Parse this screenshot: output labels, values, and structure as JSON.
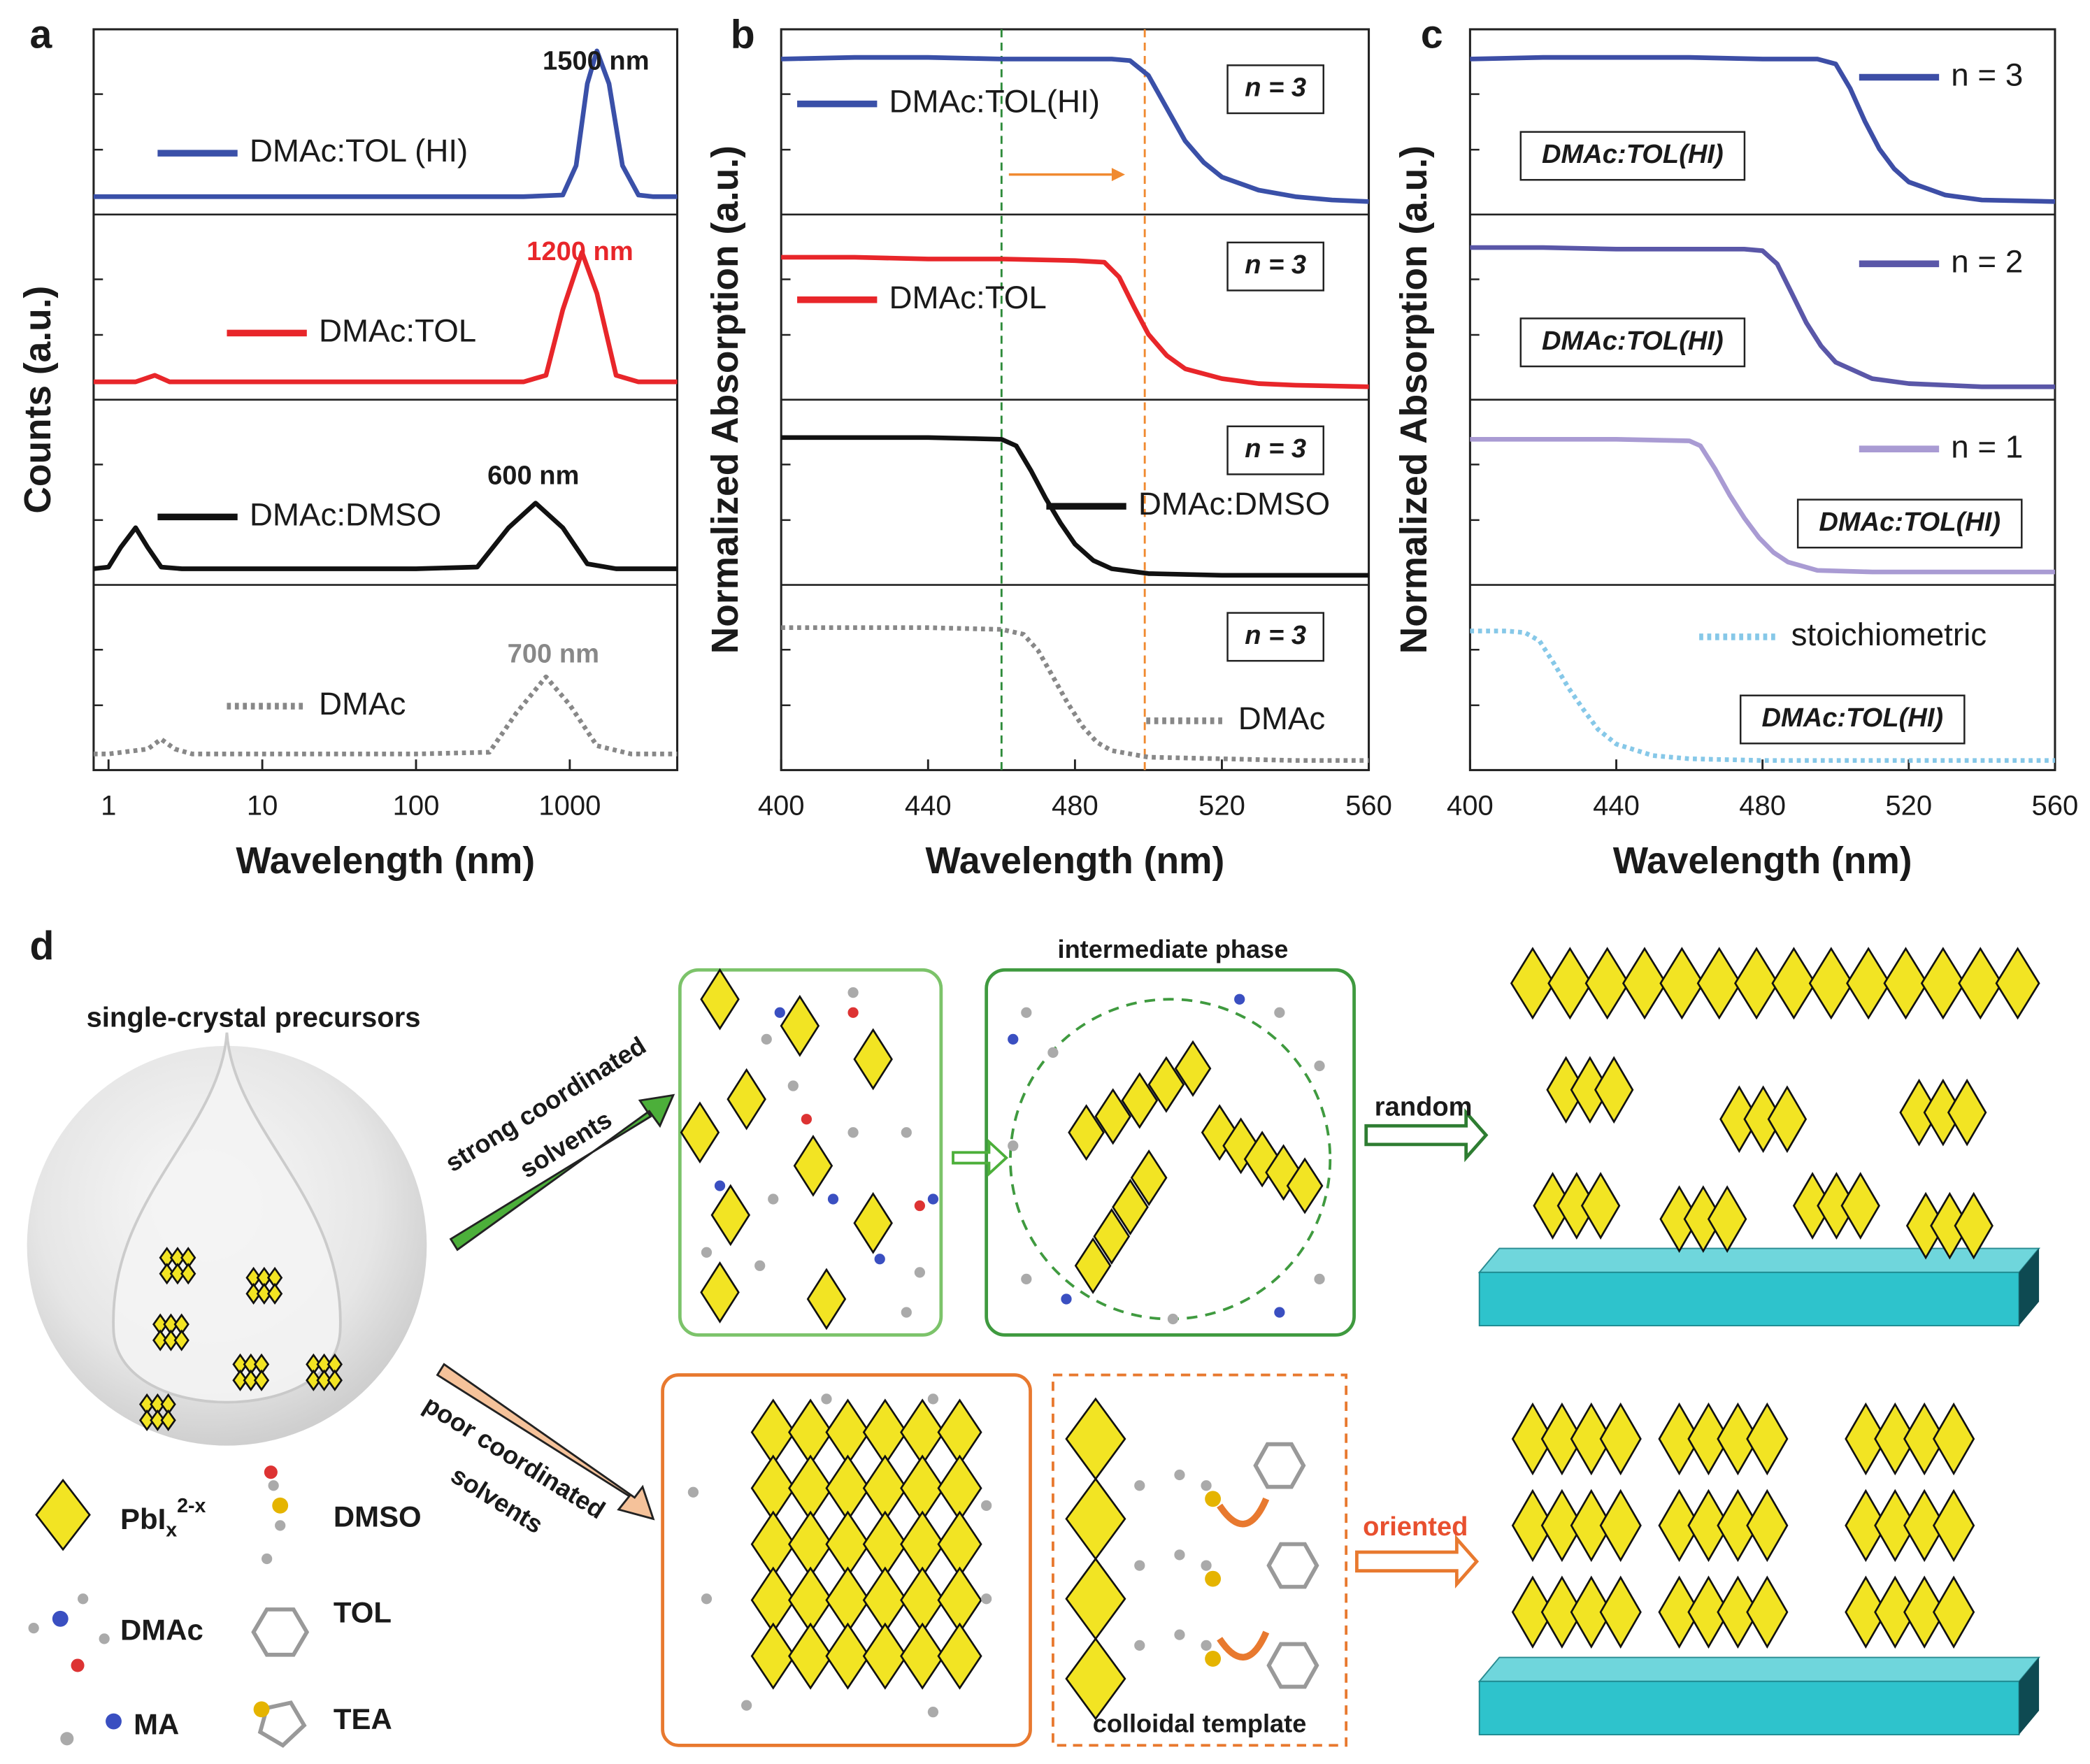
{
  "chart_data": [
    {
      "type": "line",
      "panel": "a",
      "x_label": "Wavelength (nm)",
      "y_label": "Counts (a.u.)",
      "log_x": true,
      "xlim": [
        0.8,
        5000
      ],
      "xticks": [
        1,
        10,
        100,
        1000
      ],
      "ylim": [
        0,
        1
      ],
      "series": [
        {
          "name": "DMAc:TOL (HI)",
          "color": "#3a50a8",
          "dash": false,
          "annotation": "1500 nm",
          "annotation_color": "#1a1a1a",
          "x": [
            0.8,
            1,
            10,
            100,
            500,
            900,
            1100,
            1300,
            1500,
            1800,
            2200,
            2800,
            3500,
            5000
          ],
          "values": [
            0.06,
            0.06,
            0.06,
            0.06,
            0.06,
            0.07,
            0.25,
            0.75,
            0.95,
            0.75,
            0.25,
            0.07,
            0.06,
            0.06
          ]
        },
        {
          "name": "DMAc:TOL",
          "color": "#e8262a",
          "dash": false,
          "annotation": "1200 nm",
          "annotation_color": "#e8262a",
          "x": [
            0.8,
            1,
            1.5,
            2,
            2.5,
            3,
            10,
            100,
            500,
            700,
            900,
            1200,
            1500,
            2000,
            2800,
            5000
          ],
          "values": [
            0.06,
            0.06,
            0.06,
            0.1,
            0.06,
            0.06,
            0.06,
            0.06,
            0.06,
            0.1,
            0.5,
            0.85,
            0.6,
            0.1,
            0.06,
            0.06
          ]
        },
        {
          "name": "DMAc:DMSO",
          "color": "#111111",
          "dash": false,
          "annotation": "600 nm",
          "annotation_color": "#1a1a1a",
          "x": [
            0.8,
            1,
            1.2,
            1.5,
            1.8,
            2.2,
            3,
            10,
            100,
            250,
            400,
            600,
            900,
            1300,
            2000,
            5000
          ],
          "values": [
            0.05,
            0.06,
            0.18,
            0.3,
            0.18,
            0.06,
            0.05,
            0.05,
            0.05,
            0.06,
            0.3,
            0.45,
            0.3,
            0.08,
            0.05,
            0.05
          ]
        },
        {
          "name": "DMAc",
          "color": "#888888",
          "dash": true,
          "annotation": "700 nm",
          "annotation_color": "#888888",
          "x": [
            0.8,
            1,
            1.8,
            2.2,
            2.7,
            3.5,
            10,
            100,
            300,
            450,
            700,
            1000,
            1500,
            2500,
            5000
          ],
          "values": [
            0.05,
            0.05,
            0.08,
            0.14,
            0.08,
            0.05,
            0.05,
            0.05,
            0.06,
            0.3,
            0.52,
            0.35,
            0.1,
            0.05,
            0.05
          ]
        }
      ]
    },
    {
      "type": "line",
      "panel": "b",
      "x_label": "Wavelength (nm)",
      "y_label": "Normalized Absorption (a.u.)",
      "log_x": false,
      "xlim": [
        400,
        560
      ],
      "xticks": [
        400,
        440,
        480,
        520,
        560
      ],
      "ylim": [
        0,
        1
      ],
      "vlines": [
        {
          "x": 460,
          "color": "#2e8b3a"
        },
        {
          "x": 499,
          "color": "#f08a30"
        }
      ],
      "arrow": {
        "from": 462,
        "to": 490,
        "color": "#f08a30"
      },
      "series": [
        {
          "name": "DMAc:TOL(HI)",
          "color": "#3a50a8",
          "dash": false,
          "box_label": "n = 3",
          "x": [
            400,
            420,
            440,
            460,
            480,
            490,
            495,
            500,
            505,
            510,
            515,
            520,
            530,
            540,
            550,
            560
          ],
          "values": [
            0.9,
            0.91,
            0.91,
            0.9,
            0.9,
            0.9,
            0.89,
            0.8,
            0.6,
            0.4,
            0.27,
            0.18,
            0.1,
            0.06,
            0.04,
            0.03
          ]
        },
        {
          "name": "DMAc:TOL",
          "color": "#e8262a",
          "dash": false,
          "box_label": "n = 3",
          "x": [
            400,
            420,
            440,
            460,
            480,
            488,
            492,
            496,
            500,
            505,
            510,
            520,
            530,
            540,
            560
          ],
          "values": [
            0.82,
            0.82,
            0.81,
            0.81,
            0.8,
            0.79,
            0.7,
            0.52,
            0.35,
            0.22,
            0.14,
            0.08,
            0.05,
            0.04,
            0.03
          ]
        },
        {
          "name": "DMAc:DMSO",
          "color": "#111111",
          "dash": false,
          "box_label": "n = 3",
          "x": [
            400,
            420,
            440,
            460,
            464,
            468,
            472,
            476,
            480,
            485,
            490,
            500,
            520,
            540,
            560
          ],
          "values": [
            0.85,
            0.85,
            0.85,
            0.84,
            0.8,
            0.65,
            0.48,
            0.33,
            0.2,
            0.1,
            0.05,
            0.02,
            0.01,
            0.01,
            0.01
          ]
        },
        {
          "name": "DMAc",
          "color": "#888888",
          "dash": true,
          "box_label": "n = 3",
          "x": [
            400,
            420,
            440,
            460,
            466,
            470,
            474,
            478,
            482,
            486,
            490,
            500,
            520,
            540,
            560
          ],
          "values": [
            0.82,
            0.82,
            0.82,
            0.81,
            0.78,
            0.68,
            0.52,
            0.36,
            0.22,
            0.12,
            0.07,
            0.03,
            0.02,
            0.01,
            0.01
          ]
        }
      ]
    },
    {
      "type": "line",
      "panel": "c",
      "x_label": "Wavelength (nm)",
      "y_label": "Normalized Absorption (a.u.)",
      "log_x": false,
      "xlim": [
        400,
        560
      ],
      "xticks": [
        400,
        440,
        480,
        520,
        560
      ],
      "ylim": [
        0,
        1
      ],
      "series": [
        {
          "name": "n = 3",
          "color": "#3d4ea6",
          "dash": false,
          "box_label": "DMAc:TOL(HI)",
          "x": [
            400,
            420,
            440,
            460,
            480,
            495,
            500,
            504,
            508,
            512,
            516,
            520,
            530,
            540,
            560
          ],
          "values": [
            0.9,
            0.91,
            0.91,
            0.91,
            0.9,
            0.9,
            0.87,
            0.72,
            0.52,
            0.35,
            0.23,
            0.15,
            0.07,
            0.04,
            0.03
          ]
        },
        {
          "name": "n = 2",
          "color": "#5a57a8",
          "dash": false,
          "box_label": "DMAc:TOL(HI)",
          "x": [
            400,
            420,
            440,
            460,
            475,
            480,
            484,
            488,
            492,
            496,
            500,
            510,
            520,
            540,
            560
          ],
          "values": [
            0.88,
            0.88,
            0.87,
            0.87,
            0.87,
            0.86,
            0.78,
            0.6,
            0.42,
            0.28,
            0.18,
            0.08,
            0.05,
            0.03,
            0.03
          ]
        },
        {
          "name": "n = 1",
          "color": "#a99bd3",
          "dash": false,
          "box_label": "DMAc:TOL(HI)",
          "x": [
            400,
            420,
            440,
            460,
            463,
            467,
            471,
            475,
            479,
            483,
            487,
            495,
            510,
            530,
            560
          ],
          "values": [
            0.84,
            0.84,
            0.84,
            0.83,
            0.8,
            0.66,
            0.5,
            0.36,
            0.24,
            0.15,
            0.09,
            0.04,
            0.03,
            0.03,
            0.03
          ]
        },
        {
          "name": "stoichiometric",
          "color": "#86c8e8",
          "dash": true,
          "box_label": "DMAc:TOL(HI)",
          "x": [
            400,
            410,
            415,
            419,
            423,
            427,
            431,
            435,
            440,
            450,
            460,
            480,
            520,
            560
          ],
          "values": [
            0.8,
            0.8,
            0.79,
            0.74,
            0.6,
            0.45,
            0.32,
            0.2,
            0.11,
            0.04,
            0.02,
            0.01,
            0.01,
            0.01
          ]
        }
      ]
    }
  ],
  "diagram": {
    "panel": "d",
    "precursor_title": "single-crystal precursors",
    "strong_path": [
      "strong coordinated",
      "solvents"
    ],
    "poor_path": [
      "poor coordinated",
      "solvents"
    ],
    "intermediate": "intermediate phase",
    "random": "random",
    "oriented": "oriented",
    "template": "colloidal template",
    "legend": [
      {
        "label": "PbI",
        "sub": "x",
        "sup": "2-x"
      },
      {
        "label": "DMSO"
      },
      {
        "label": "DMAc"
      },
      {
        "label": "TOL"
      },
      {
        "label": "MA"
      },
      {
        "label": "TEA"
      }
    ]
  }
}
